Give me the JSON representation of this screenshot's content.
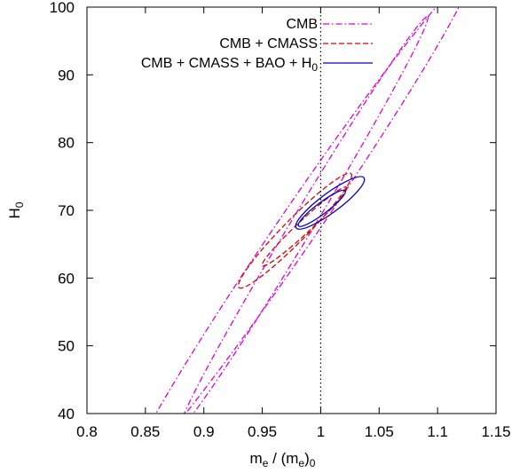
{
  "chart_data": {
    "type": "contour",
    "xlabel": "m_e / (m_e)_0",
    "ylabel": "H_0",
    "xlim": [
      0.8,
      1.15
    ],
    "ylim": [
      40,
      100
    ],
    "xticks": [
      "0.8",
      "0.85",
      "0.9",
      "0.95",
      "1",
      "1.05",
      "1.1",
      "1.15"
    ],
    "yticks": [
      "40",
      "50",
      "60",
      "70",
      "80",
      "90",
      "100"
    ],
    "reference_line": {
      "x": 1.0,
      "style": "dotted",
      "color": "#000000"
    },
    "legend_position": "top-right",
    "series": [
      {
        "name": "CMB",
        "color": "#dd00dd",
        "dash": "dash-dot",
        "contours": [
          {
            "level": "inner",
            "center": [
              0.986,
              68.4
            ],
            "axis": [
              0.1055,
              30.2
            ],
            "width": 0.0095
          },
          {
            "level": "outer",
            "center": [
              0.983,
              68.2
            ],
            "axis": [
              0.1445,
              36.4
            ],
            "width": 0.0165
          }
        ]
      },
      {
        "name": "CMB + CMASS",
        "color": "#dd0000",
        "dash": "dashed",
        "contours": [
          {
            "level": "inner",
            "center": [
              0.986,
              67.6
            ],
            "axis": [
              0.036,
              5.8
            ],
            "width": 0.0055
          },
          {
            "level": "outer",
            "center": [
              0.978,
              67.0
            ],
            "axis": [
              0.048,
              8.4
            ],
            "width": 0.0098
          }
        ]
      },
      {
        "name": "CMB + CMASS + BAO + H0",
        "color": "#0000cc",
        "dash": "solid",
        "contours": [
          {
            "level": "inner",
            "center": [
              1.001,
              70.3
            ],
            "axis": [
              0.02,
              2.6
            ],
            "width": 0.0048
          },
          {
            "level": "outer",
            "center": [
              1.008,
              71.1
            ],
            "axis": [
              0.029,
              3.7
            ],
            "width": 0.0083
          }
        ]
      }
    ],
    "legend": [
      {
        "label": "CMB",
        "color": "#dd00dd",
        "dash": "dash-dot"
      },
      {
        "label": "CMB + CMASS",
        "color": "#dd0000",
        "dash": "dashed"
      },
      {
        "label": "CMB + CMASS + BAO + H",
        "sub": "0",
        "color": "#0000cc",
        "dash": "solid"
      }
    ]
  }
}
